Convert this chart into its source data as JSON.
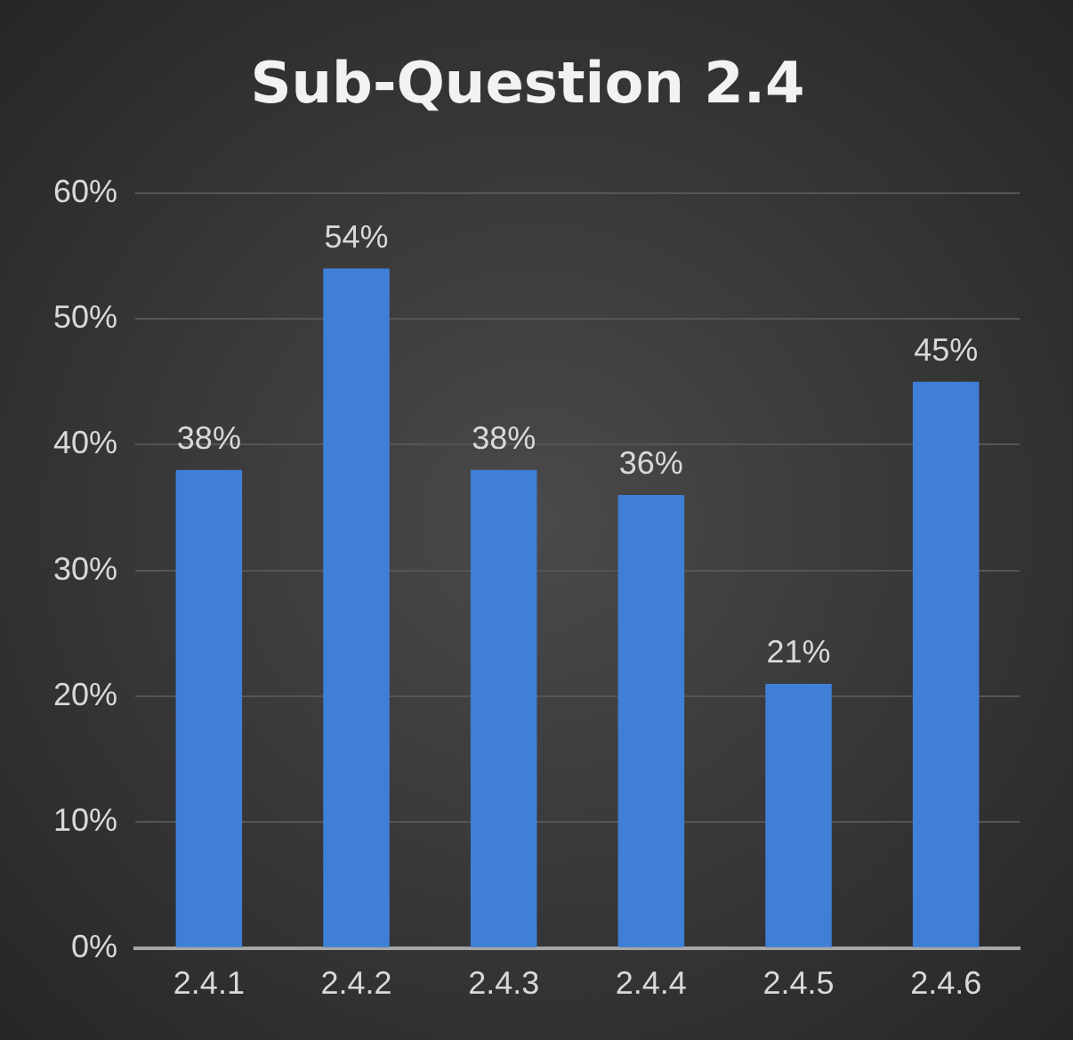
{
  "chart_data": {
    "type": "bar",
    "title": "Sub-Question 2.4",
    "categories": [
      "2.4.1",
      "2.4.2",
      "2.4.3",
      "2.4.4",
      "2.4.5",
      "2.4.6"
    ],
    "values": [
      38,
      54,
      38,
      36,
      21,
      45
    ],
    "color": "#3f7fd6",
    "value_labels": [
      "38%",
      "54%",
      "38%",
      "36%",
      "21%",
      "45%"
    ],
    "ylim": [
      0,
      60
    ],
    "yticks": [
      {
        "value": 0,
        "label": "0%"
      },
      {
        "value": 10,
        "label": "10%"
      },
      {
        "value": 20,
        "label": "20%"
      },
      {
        "value": 30,
        "label": "30%"
      },
      {
        "value": 40,
        "label": "40%"
      },
      {
        "value": 50,
        "label": "50%"
      },
      {
        "value": 60,
        "label": "60%"
      }
    ],
    "grid": "y",
    "legend": false
  }
}
